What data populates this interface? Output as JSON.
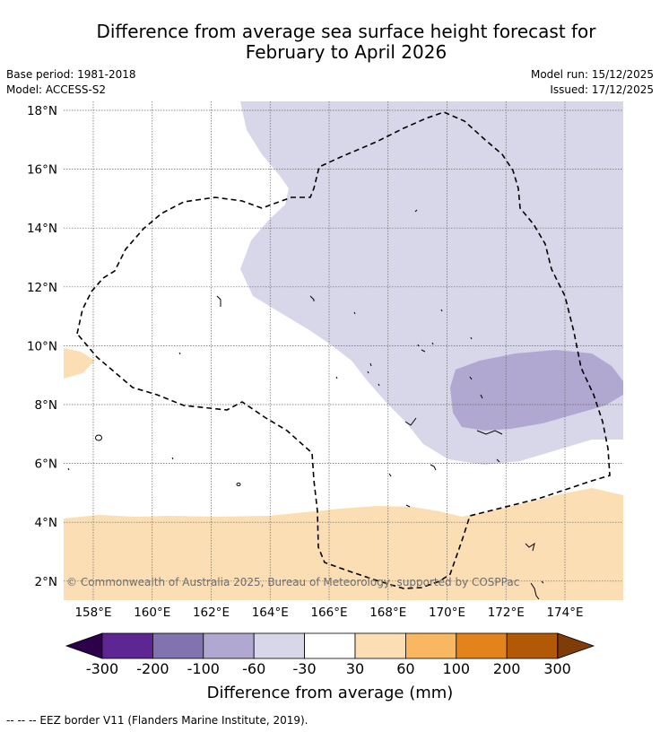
{
  "title": {
    "line1": "Difference from average sea surface height forecast for",
    "line2": "February to April 2026"
  },
  "meta": {
    "base_period": "Base period: 1981-2018",
    "model": "Model: ACCESS-S2",
    "model_run": "Model run: 15/12/2025",
    "issued": "Issued: 17/12/2025"
  },
  "map": {
    "lon_labels": [
      "158°E",
      "160°E",
      "162°E",
      "164°E",
      "166°E",
      "168°E",
      "170°E",
      "172°E",
      "174°E"
    ],
    "lat_labels": [
      "18°N",
      "16°N",
      "14°N",
      "12°N",
      "10°N",
      "8°N",
      "6°N",
      "4°N",
      "2°N"
    ],
    "copyright": "© Commonwealth of Australia 2025, Bureau of Meteorology, supported by COSPPac",
    "colors": {
      "lavender": "#d7d7e9",
      "purple": "#b1a8d1",
      "peach": "#fcdeb4"
    }
  },
  "colorbar": {
    "tick_labels": [
      "-300",
      "-200",
      "-100",
      "-60",
      "-30",
      "30",
      "60",
      "100",
      "200",
      "300"
    ],
    "colors": [
      "#5d2692",
      "#8272b0",
      "#b1a8d1",
      "#d7d7e9",
      "#ffffff",
      "#fcdeb4",
      "#fab762",
      "#e2841b",
      "#b25908"
    ],
    "under_color": "#2d004b",
    "over_color": "#7f3b08",
    "label": "Difference from average (mm)"
  },
  "footnote": "--  --  -- EEZ border V11 (Flanders Marine Institute, 2019)."
}
